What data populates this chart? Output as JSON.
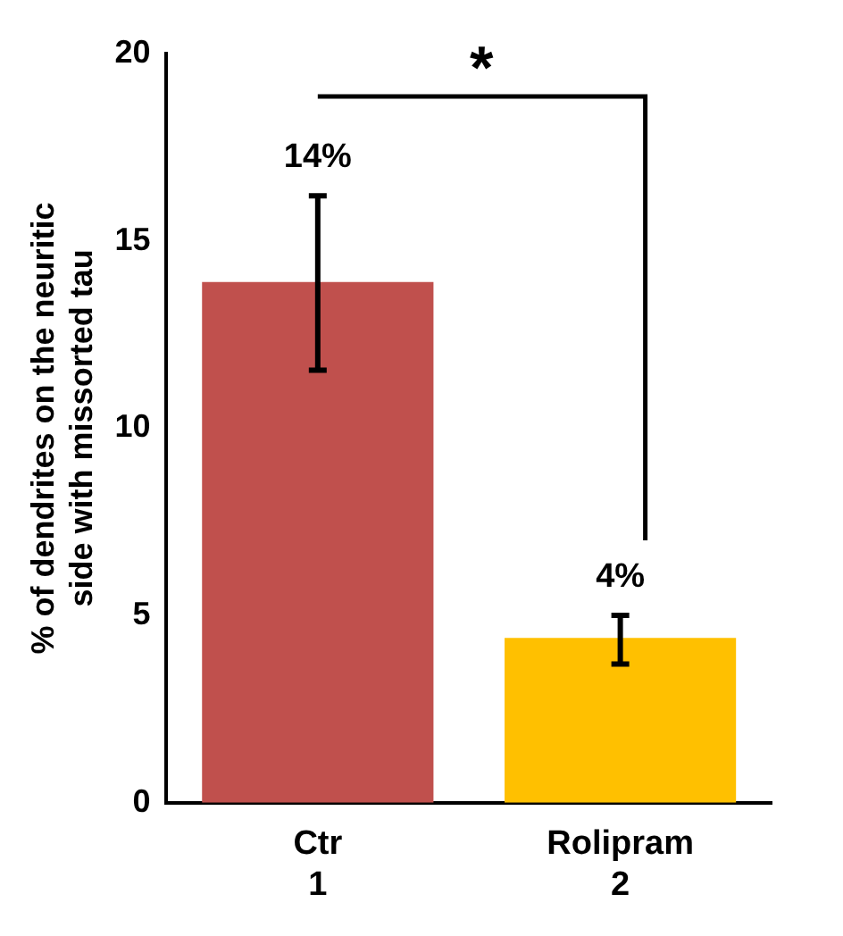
{
  "chart_data": {
    "type": "bar",
    "ylabel": "% of dendrites on the neuritic side with missorted tau",
    "categories": [
      "Ctr\n1",
      "Rolipram\n2"
    ],
    "values": [
      13.9,
      4.4
    ],
    "colors": [
      "#c0504d",
      "#ffc000"
    ],
    "errors": [
      [
        11.55,
        16.2
      ],
      [
        3.7,
        5.0
      ]
    ],
    "value_labels": [
      "14%",
      "4%"
    ],
    "ylim": [
      0,
      20
    ],
    "yticks": [
      0,
      5,
      10,
      15,
      20
    ],
    "grid": false,
    "legend": false,
    "annotations": [
      "*"
    ]
  }
}
